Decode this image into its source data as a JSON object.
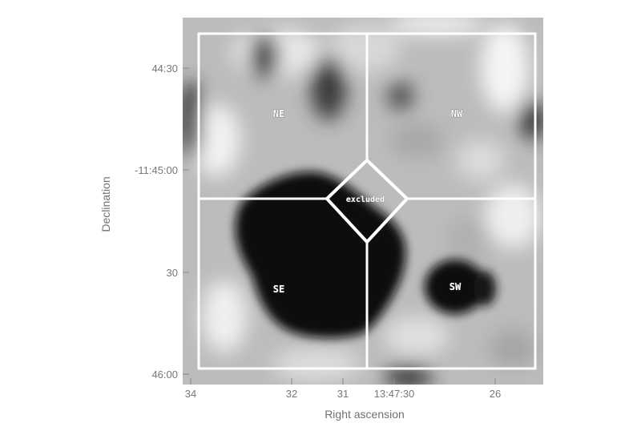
{
  "axes": {
    "xlabel": "Right ascension",
    "ylabel": "Declination",
    "x_ticks": [
      "34",
      "32",
      "31",
      "13:47:30",
      "26"
    ],
    "y_ticks": [
      "44:30",
      "-11:45:00",
      "30",
      "46:00"
    ]
  },
  "regions": {
    "ne": "NE",
    "nw": "NW",
    "se": "SE",
    "sw": "SW",
    "excluded": "excluded"
  },
  "colors": {
    "overlay": "#ffffff",
    "dark": "#0c0c0c",
    "background": "#bdbdbd"
  }
}
